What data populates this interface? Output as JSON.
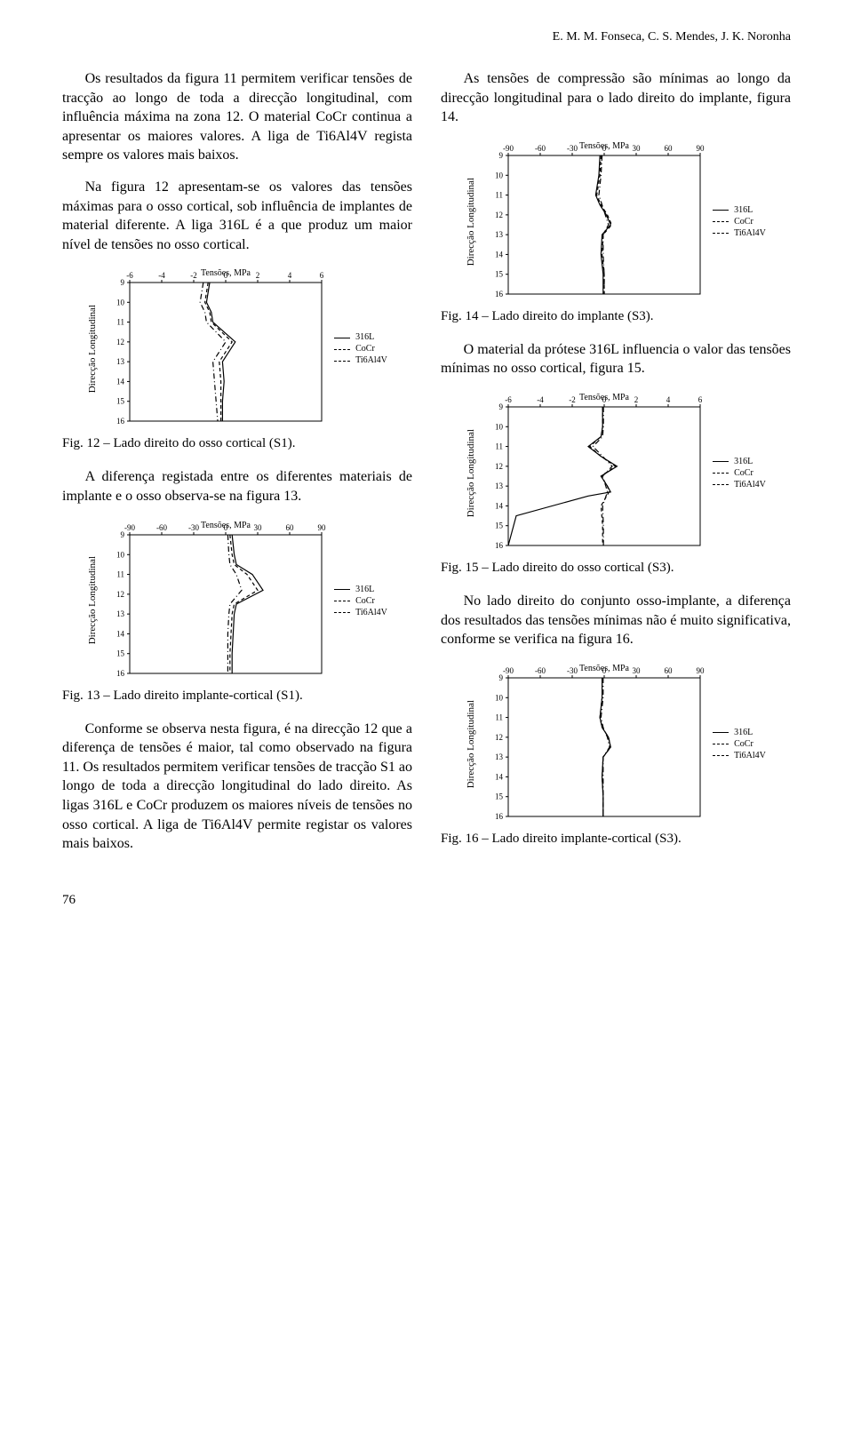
{
  "running_head": "E. M. M. Fonseca, C. S. Mendes, J. K. Noronha",
  "page_number": "76",
  "left": {
    "p1": "Os resultados da figura 11 permitem verificar tensões de tracção ao longo de toda a direcção longitudinal, com influência máxima na zona 12. O material CoCr continua a apresentar os maiores valores. A liga de Ti6Al4V regista sempre os valores mais baixos.",
    "p2": "Na figura 12 apresentam-se os valores das tensões máximas para o osso cortical, sob influência de implantes de material diferente. A liga 316L é a que produz um maior nível de tensões no osso cortical.",
    "fig12_caption": "Fig. 12 – Lado direito do osso cortical (S1).",
    "p3": "A diferença registada entre os diferentes materiais de implante e o osso observa-se na figura 13.",
    "fig13_caption": "Fig. 13 – Lado direito implante-cortical (S1).",
    "p4": "Conforme se observa nesta figura, é na direcção 12 que a diferença de tensões é maior, tal como observado na figura 11. Os resultados permitem verificar tensões de tracção S1 ao longo de toda a direcção longitudinal do lado direito. As ligas 316L e CoCr produzem os maiores níveis de tensões no osso cortical. A liga de Ti6Al4V permite registar os valores mais baixos."
  },
  "right": {
    "p1": "As tensões de compressão são mínimas ao longo da direcção longitudinal para o lado direito do implante, figura 14.",
    "fig14_caption": "Fig. 14 – Lado direito do implante (S3).",
    "p2": "O material da prótese 316L influencia o valor das tensões mínimas no osso cortical, figura 15.",
    "fig15_caption": "Fig. 15 – Lado direito do osso cortical (S3).",
    "p3": "No lado direito do conjunto osso-implante, a diferença dos resultados das tensões mínimas não é muito significativa, conforme se verifica na figura 16.",
    "fig16_caption": "Fig. 16 – Lado direito implante-cortical (S3)."
  },
  "shared": {
    "xlabel": "Tensões, MPa",
    "ylabel": "Direcção Longitudinal",
    "legend": {
      "a": "316L",
      "b": "CoCr",
      "c": "Ti6Al4V"
    },
    "yticks": [
      9,
      10,
      11,
      12,
      13,
      14,
      15,
      16
    ],
    "line_color": "#000000",
    "grid_color": "#000000",
    "background_color": "#ffffff",
    "title_fontsize": 10,
    "tick_fontsize": 9
  },
  "charts": {
    "fig12": {
      "type": "line",
      "xlim": [
        -6,
        6
      ],
      "xticks": [
        -6,
        -4,
        -2,
        0,
        2,
        4,
        6
      ],
      "ylim": [
        9,
        16
      ],
      "series": {
        "316L": {
          "style": "solid",
          "pts": [
            [
              -1.0,
              9
            ],
            [
              -1.2,
              10
            ],
            [
              -0.9,
              10.5
            ],
            [
              -0.8,
              11
            ],
            [
              0.6,
              12
            ],
            [
              -0.2,
              13
            ],
            [
              -0.1,
              14
            ],
            [
              -0.2,
              15
            ],
            [
              -0.2,
              16
            ]
          ]
        },
        "CoCr": {
          "style": "dash",
          "pts": [
            [
              -1.1,
              9
            ],
            [
              -1.3,
              10
            ],
            [
              -1.0,
              10.5
            ],
            [
              -0.9,
              11
            ],
            [
              0.4,
              12
            ],
            [
              -0.4,
              13
            ],
            [
              -0.3,
              14
            ],
            [
              -0.3,
              15
            ],
            [
              -0.3,
              16
            ]
          ]
        },
        "Ti6Al4V": {
          "style": "dashdot",
          "pts": [
            [
              -1.4,
              9
            ],
            [
              -1.6,
              10
            ],
            [
              -1.3,
              10.5
            ],
            [
              -1.2,
              11
            ],
            [
              0.0,
              12
            ],
            [
              -0.8,
              13
            ],
            [
              -0.7,
              14
            ],
            [
              -0.6,
              15
            ],
            [
              -0.5,
              16
            ]
          ]
        }
      }
    },
    "fig13": {
      "type": "line",
      "xlim": [
        -90,
        90
      ],
      "xticks": [
        -90,
        -60,
        -30,
        0,
        30,
        60,
        90
      ],
      "ylim": [
        9,
        16
      ],
      "series": {
        "316L": {
          "style": "solid",
          "pts": [
            [
              6,
              9
            ],
            [
              8,
              10
            ],
            [
              10,
              10.5
            ],
            [
              25,
              11
            ],
            [
              35,
              11.8
            ],
            [
              10,
              12.5
            ],
            [
              8,
              13
            ],
            [
              7,
              14
            ],
            [
              6,
              15
            ],
            [
              6,
              16
            ]
          ]
        },
        "CoCr": {
          "style": "dash",
          "pts": [
            [
              4,
              9
            ],
            [
              6,
              10
            ],
            [
              8,
              10.5
            ],
            [
              20,
              11
            ],
            [
              30,
              11.8
            ],
            [
              8,
              12.5
            ],
            [
              6,
              13
            ],
            [
              5,
              14
            ],
            [
              4,
              15
            ],
            [
              4,
              16
            ]
          ]
        },
        "Ti6Al4V": {
          "style": "dashdot",
          "pts": [
            [
              2,
              9
            ],
            [
              3,
              10
            ],
            [
              4,
              10.5
            ],
            [
              10,
              11
            ],
            [
              15,
              11.8
            ],
            [
              4,
              12.5
            ],
            [
              3,
              13
            ],
            [
              2,
              14
            ],
            [
              2,
              15
            ],
            [
              2,
              16
            ]
          ]
        }
      }
    },
    "fig14": {
      "type": "line",
      "xlim": [
        -90,
        90
      ],
      "xticks": [
        -90,
        -60,
        -30,
        0,
        30,
        60,
        90
      ],
      "ylim": [
        9,
        16
      ],
      "series": {
        "316L": {
          "style": "solid",
          "pts": [
            [
              -4,
              9
            ],
            [
              -5,
              10
            ],
            [
              -8,
              11
            ],
            [
              -4,
              11.5
            ],
            [
              2,
              12
            ],
            [
              6,
              12.5
            ],
            [
              -2,
              13
            ],
            [
              -3,
              14
            ],
            [
              -1,
              15
            ],
            [
              -1,
              16
            ]
          ]
        },
        "CoCr": {
          "style": "dash",
          "pts": [
            [
              -3,
              9
            ],
            [
              -4,
              10
            ],
            [
              -7,
              11
            ],
            [
              -3,
              11.5
            ],
            [
              3,
              12
            ],
            [
              7,
              12.5
            ],
            [
              -1,
              13
            ],
            [
              -2,
              14
            ],
            [
              0,
              15
            ],
            [
              0,
              16
            ]
          ]
        },
        "Ti6Al4V": {
          "style": "dashdot",
          "pts": [
            [
              -2,
              9
            ],
            [
              -3,
              10
            ],
            [
              -5,
              11
            ],
            [
              -2,
              11.5
            ],
            [
              1,
              12
            ],
            [
              4,
              12.5
            ],
            [
              -1,
              13
            ],
            [
              -1,
              14
            ],
            [
              0,
              15
            ],
            [
              0,
              16
            ]
          ]
        }
      }
    },
    "fig15": {
      "type": "line",
      "xlim": [
        -6,
        6
      ],
      "xticks": [
        -6,
        -4,
        -2,
        0,
        2,
        4,
        6
      ],
      "ylim": [
        9,
        16
      ],
      "series": {
        "316L": {
          "style": "solid",
          "pts": [
            [
              -0.1,
              9
            ],
            [
              -0.1,
              10
            ],
            [
              -0.2,
              10.5
            ],
            [
              -1.0,
              11
            ],
            [
              -0.2,
              11.5
            ],
            [
              0.8,
              12
            ],
            [
              -0.2,
              12.5
            ],
            [
              0.2,
              13
            ],
            [
              0.4,
              13.3
            ],
            [
              -1.0,
              13.5
            ],
            [
              -5.5,
              14.5
            ],
            [
              -6,
              16
            ]
          ]
        },
        "CoCr": {
          "style": "dash",
          "pts": [
            [
              -0.1,
              9
            ],
            [
              -0.1,
              10
            ],
            [
              -0.2,
              10.5
            ],
            [
              -0.9,
              11
            ],
            [
              -0.2,
              11.5
            ],
            [
              0.7,
              12
            ],
            [
              -0.2,
              12.5
            ],
            [
              0.2,
              13
            ],
            [
              0.3,
              13.3
            ],
            [
              -0.2,
              14
            ],
            [
              -0.1,
              15
            ],
            [
              -0.1,
              16
            ]
          ]
        },
        "Ti6Al4V": {
          "style": "dashdot",
          "pts": [
            [
              -0.05,
              9
            ],
            [
              -0.05,
              10
            ],
            [
              -0.1,
              10.5
            ],
            [
              -0.7,
              11
            ],
            [
              -0.1,
              11.5
            ],
            [
              0.5,
              12
            ],
            [
              -0.1,
              12.5
            ],
            [
              0.1,
              13
            ],
            [
              0.2,
              13.3
            ],
            [
              -0.1,
              14
            ],
            [
              -0.05,
              15
            ],
            [
              -0.05,
              16
            ]
          ]
        }
      }
    },
    "fig16": {
      "type": "line",
      "xlim": [
        -90,
        90
      ],
      "xticks": [
        -90,
        -60,
        -30,
        0,
        30,
        60,
        90
      ],
      "ylim": [
        9,
        16
      ],
      "series": {
        "316L": {
          "style": "solid",
          "pts": [
            [
              -2,
              9
            ],
            [
              -2,
              10
            ],
            [
              -4,
              11
            ],
            [
              -2,
              11.5
            ],
            [
              4,
              12
            ],
            [
              6,
              12.5
            ],
            [
              -1,
              13
            ],
            [
              -2,
              14
            ],
            [
              -1,
              15
            ],
            [
              -1,
              16
            ]
          ]
        },
        "CoCr": {
          "style": "dash",
          "pts": [
            [
              -2,
              9
            ],
            [
              -2,
              10
            ],
            [
              -4,
              11
            ],
            [
              -2,
              11.5
            ],
            [
              4,
              12
            ],
            [
              6,
              12.5
            ],
            [
              -1,
              13
            ],
            [
              -2,
              14
            ],
            [
              -1,
              15
            ],
            [
              -1,
              16
            ]
          ]
        },
        "Ti6Al4V": {
          "style": "dashdot",
          "pts": [
            [
              -1,
              9
            ],
            [
              -1,
              10
            ],
            [
              -3,
              11
            ],
            [
              -1,
              11.5
            ],
            [
              3,
              12
            ],
            [
              5,
              12.5
            ],
            [
              -1,
              13
            ],
            [
              -1,
              14
            ],
            [
              -1,
              15
            ],
            [
              -1,
              16
            ]
          ]
        }
      }
    }
  }
}
